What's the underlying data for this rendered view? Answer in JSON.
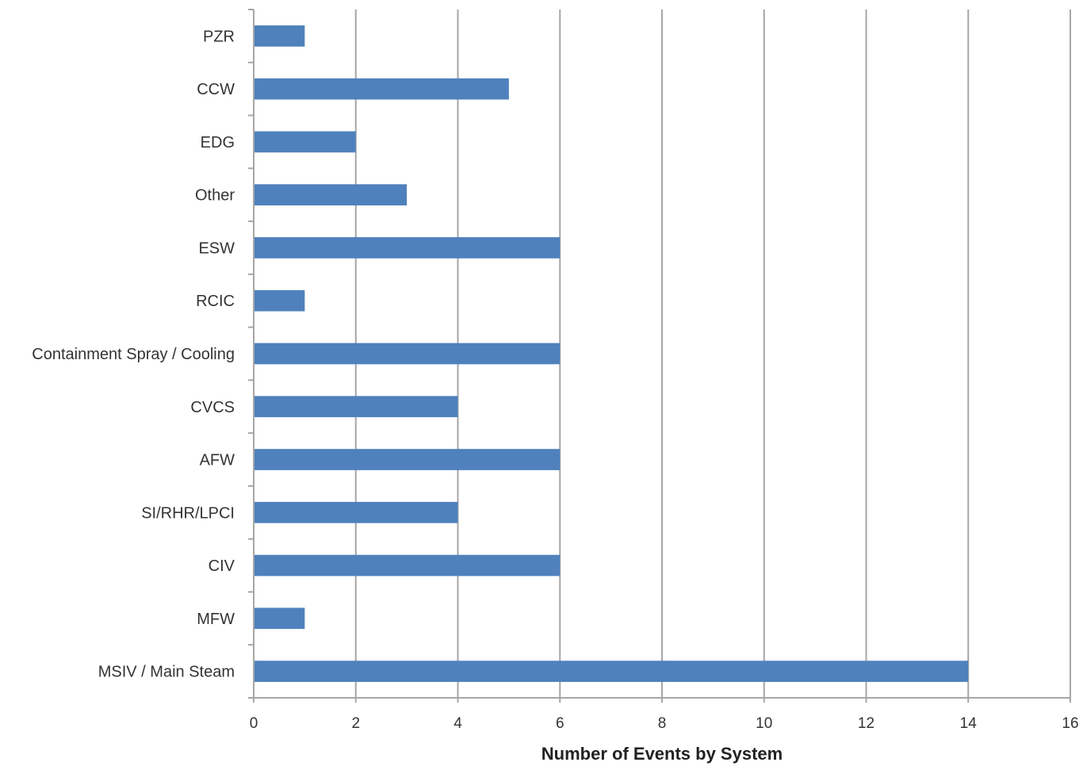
{
  "chart_data": {
    "type": "bar",
    "orientation": "horizontal",
    "categories": [
      "PZR",
      "CCW",
      "EDG",
      "Other",
      "ESW",
      "RCIC",
      "Containment Spray / Cooling",
      "CVCS",
      "AFW",
      "SI/RHR/LPCI",
      "CIV",
      "MFW",
      "MSIV / Main Steam"
    ],
    "values": [
      1,
      5,
      2,
      3,
      6,
      1,
      6,
      4,
      6,
      4,
      6,
      1,
      14
    ],
    "title": "",
    "xlabel": "Number of Events by System",
    "ylabel": "",
    "xlim": [
      0,
      16
    ],
    "xticks": [
      "0",
      "2",
      "4",
      "6",
      "8",
      "10",
      "12",
      "14",
      "16"
    ],
    "grid": "vertical",
    "legend": "none",
    "bar_color": "#4f81bd",
    "grid_color": "#a6a6a6",
    "axis_color": "#a6a6a6"
  }
}
